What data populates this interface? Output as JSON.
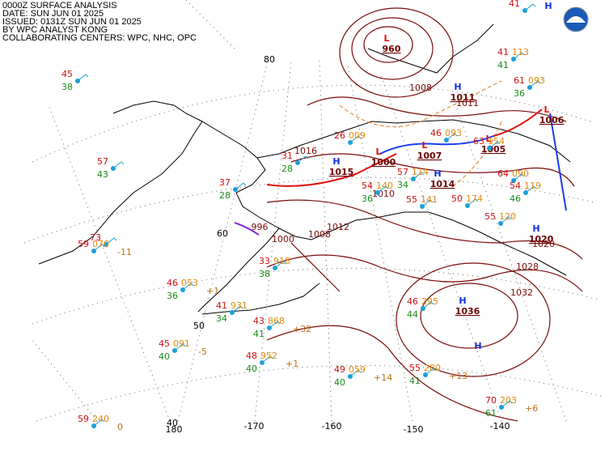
{
  "header": {
    "lines": [
      "0000Z SURFACE ANALYSIS",
      "DATE: SUN JUN 01 2025",
      "ISSUED: 0131Z SUN JUN 01 2025",
      "BY WPC ANALYST KONG",
      "COLLABORATING CENTERS: WPC, NHC, OPC"
    ]
  },
  "grid_labels": {
    "latitudes": [
      "80",
      "60",
      "50",
      "40"
    ],
    "longitudes": [
      "180",
      "-170",
      "-160",
      "-150",
      "-140"
    ]
  },
  "pressure_centers": [
    {
      "symbol": "L",
      "pressure": "960"
    },
    {
      "symbol": "H",
      "pressure": "1011"
    },
    {
      "symbol": "H",
      "pressure": "1015"
    },
    {
      "symbol": "L",
      "pressure": "1000"
    },
    {
      "symbol": "L",
      "pressure": "1007"
    },
    {
      "symbol": "L",
      "pressure": "1005"
    },
    {
      "symbol": "H",
      "pressure": "1014"
    },
    {
      "symbol": "L",
      "pressure": "1006"
    },
    {
      "symbol": "H",
      "pressure": "1020"
    },
    {
      "symbol": "H",
      "pressure": "1036"
    },
    {
      "symbol": "H"
    },
    {
      "symbol": "H"
    }
  ],
  "isobar_labels": [
    "1016",
    "1012",
    "1008",
    "1000",
    "996",
    "1032",
    "1028",
    "1011",
    "1010",
    "1008",
    "1020"
  ],
  "stations": [
    {
      "temp": "45",
      "dew": "38"
    },
    {
      "temp": "57",
      "dew": "43"
    },
    {
      "temp": "73"
    },
    {
      "temp": "59",
      "pressure": "070",
      "tendency": "-11"
    },
    {
      "temp": "46",
      "pressure": "053",
      "dew": "36",
      "tendency": "+1"
    },
    {
      "temp": "41",
      "pressure": "931",
      "dew": "34"
    },
    {
      "temp": "45",
      "pressure": "091",
      "dew": "40",
      "tendency": "-5"
    },
    {
      "temp": "48",
      "pressure": "952",
      "dew": "40",
      "tendency": "+1"
    },
    {
      "temp": "43",
      "pressure": "868",
      "dew": "41",
      "tendency": "+32"
    },
    {
      "temp": "49",
      "pressure": "059",
      "dew": "40",
      "tendency": "+14"
    },
    {
      "temp": "55",
      "pressure": "280",
      "dew": "41",
      "tendency": "+13"
    },
    {
      "temp": "46",
      "pressure": "295",
      "dew": "44"
    },
    {
      "temp": "70",
      "pressure": "203",
      "dew": "61",
      "tendency": "+6"
    },
    {
      "temp": "59",
      "pressure": "240",
      "tendency": "0"
    },
    {
      "temp": "33",
      "pressure": "918",
      "dew": "38"
    },
    {
      "temp": "37",
      "dew": "28"
    },
    {
      "temp": "31",
      "dew": "28"
    },
    {
      "temp": "26",
      "pressure": "009"
    },
    {
      "temp": "46",
      "pressure": "093"
    },
    {
      "temp": "63",
      "pressure": "154"
    },
    {
      "temp": "64",
      "pressure": "090"
    },
    {
      "temp": "54",
      "pressure": "119",
      "dew": "46"
    },
    {
      "temp": "57",
      "pressure": "114",
      "dew": "34"
    },
    {
      "temp": "55",
      "pressure": "141"
    },
    {
      "temp": "50",
      "pressure": "174"
    },
    {
      "temp": "55",
      "pressure": "120"
    },
    {
      "temp": "54",
      "pressure": "140",
      "dew": "36"
    },
    {
      "temp": "61",
      "pressure": "093",
      "dew": "36"
    },
    {
      "temp": "41",
      "pressure": "113",
      "dew": "41"
    },
    {
      "temp": "41"
    }
  ]
}
